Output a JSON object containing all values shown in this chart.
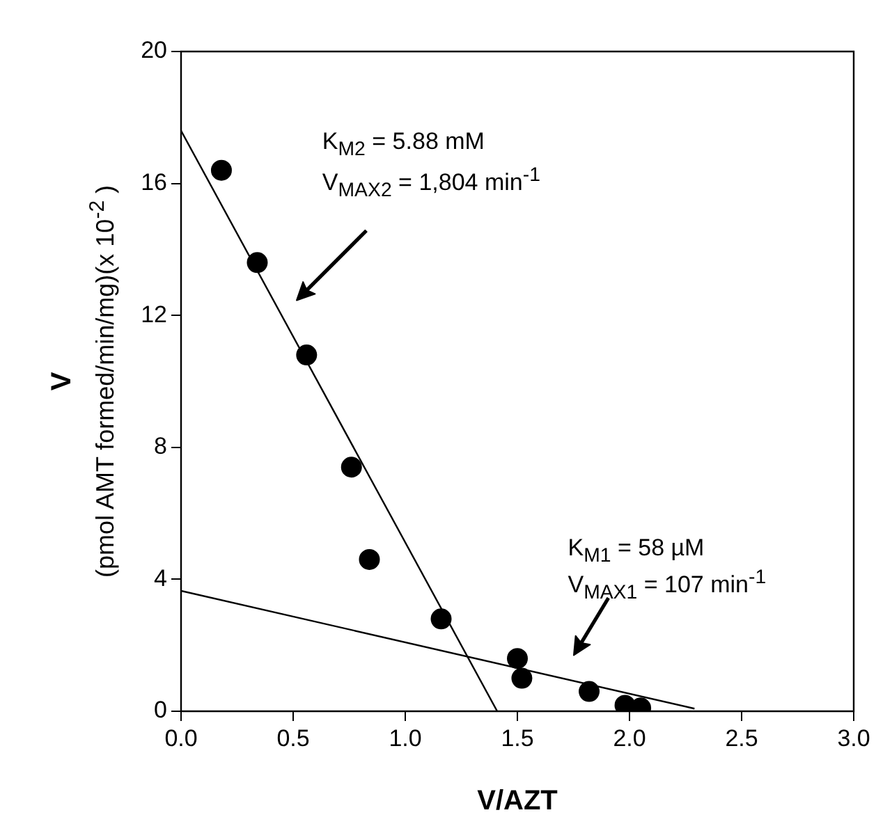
{
  "chart_data": {
    "type": "scatter",
    "xlabel": "V/AZT",
    "ylabel": "V (pmol AMT formed/min/mg)(x 10$^{-2}$ )",
    "series": [
      {
        "color": "#000000",
        "x": [
          0.18,
          0.34,
          0.56,
          0.76,
          0.84,
          1.16,
          1.5,
          1.52,
          1.82,
          1.98,
          2.05
        ],
        "values": [
          16.4,
          13.6,
          10.8,
          7.4,
          4.6,
          2.8,
          1.6,
          1.0,
          0.6,
          0.18,
          0.1
        ]
      },
      {
        "type": "line",
        "marker": "none",
        "color": "#000000",
        "x": [
          0,
          1.41
        ],
        "values": [
          17.6,
          0
        ]
      },
      {
        "type": "line",
        "marker": "none",
        "color": "#000000",
        "x": [
          0,
          2.29
        ],
        "values": [
          3.65,
          0.08
        ]
      }
    ],
    "annotations": [
      "K$_{M2}$ = 5.88 mM",
      "V$_{MAX2}$ = 1,804 min$^{-1}$",
      "K$_{M1}$ = 58 µM",
      "V$_{MAX1}$ = 107 min$^{-1}$"
    ],
    "xlim": [
      0,
      3.0
    ],
    "xticks": [
      {
        "value": 0,
        "label": "0.0"
      },
      {
        "value": 0.5,
        "label": "0.5"
      },
      {
        "value": 1,
        "label": "1.0"
      },
      {
        "value": 1.5,
        "label": "1.5"
      },
      {
        "value": 2,
        "label": "2.0"
      },
      {
        "value": 2.5,
        "label": "2.5"
      },
      {
        "value": 3,
        "label": "3.0"
      }
    ],
    "ylim": [
      0,
      20
    ],
    "yticks": [
      0,
      4,
      8,
      12,
      16,
      20
    ],
    "grid": false,
    "legend": false,
    "marker": "circle",
    "line_style": "solid"
  }
}
